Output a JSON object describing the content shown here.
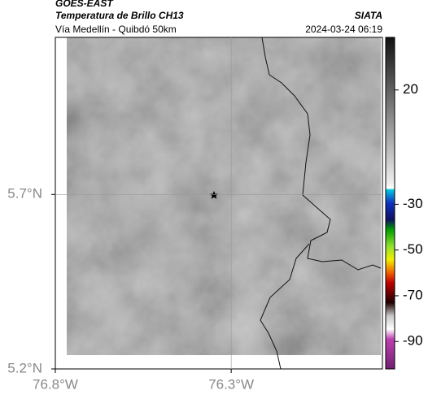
{
  "header": {
    "source": "GOES-EAST",
    "title": "Temperatura de Brillo CH13",
    "subtitle": "Vía Medellín - Quibdó 50km",
    "agency": "SIATA",
    "datetime": "2024-03-24 06:19"
  },
  "map": {
    "xlim": [
      -76.8,
      -75.87
    ],
    "ylim": [
      5.2,
      6.15
    ],
    "xticks": [
      {
        "value": -76.8,
        "label": "76.8°W"
      },
      {
        "value": -76.3,
        "label": "76.3°W"
      }
    ],
    "yticks": [
      {
        "value": 5.7,
        "label": "5.7°N"
      },
      {
        "value": 5.2,
        "label": "5.2°N"
      }
    ]
  },
  "colorbar": {
    "lim": [
      -102,
      43
    ],
    "ticks": [
      20,
      -30,
      -50,
      -70,
      -90
    ]
  }
}
